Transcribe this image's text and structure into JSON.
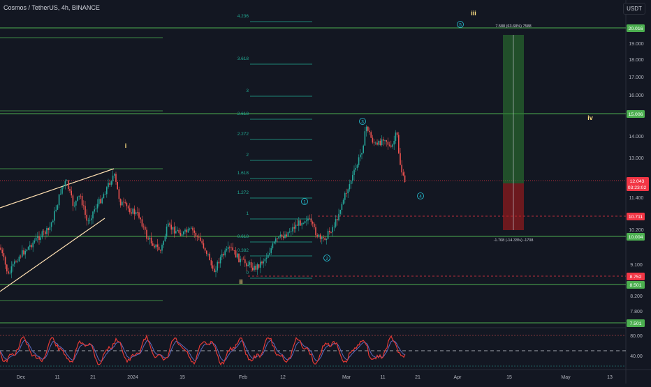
{
  "header": {
    "title": "Cosmos / TetherUS, 4h, BINANCE",
    "currency": "USDT"
  },
  "price_axis": {
    "ticks": [
      "19.000",
      "18.000",
      "17.000",
      "16.000",
      "14.000",
      "13.000",
      "11.400",
      "10.200",
      "9.100",
      "8.200",
      "7.800",
      "80.00",
      "40.00"
    ],
    "labels": [
      {
        "text": "20.016",
        "color": "#4caf50"
      },
      {
        "text": "15.006",
        "color": "#4caf50"
      },
      {
        "text": "12.043",
        "color": "#f23645"
      },
      {
        "text": "03:23:02",
        "color": "#f23645"
      },
      {
        "text": "10.711",
        "color": "#f23645"
      },
      {
        "text": "10.004",
        "color": "#4caf50"
      },
      {
        "text": "8.752",
        "color": "#f23645"
      },
      {
        "text": "8.501",
        "color": "#4caf50"
      },
      {
        "text": "7.501",
        "color": "#4caf50"
      }
    ]
  },
  "time_axis": [
    "Dec",
    "11",
    "21",
    "2024",
    "15",
    "Feb",
    "12",
    "Mar",
    "11",
    "21",
    "Apr",
    "15",
    "May",
    "13"
  ],
  "fib_levels": [
    "4.236",
    "3.618",
    "3",
    "2.618",
    "2.272",
    "2",
    "1.618",
    "1.272",
    "1",
    "0.618",
    "0.382",
    "0"
  ],
  "waves": {
    "roman": [
      "iii",
      "i",
      "iv",
      "ii"
    ],
    "circled": [
      "5",
      "3",
      "1",
      "4",
      "2"
    ]
  },
  "position": {
    "target_text": "7.588 (63.68%) 7588",
    "stop_text": "-1.708 (-14.33%) -1708"
  },
  "colors": {
    "background": "#131722",
    "fib": "#22ab94",
    "horizontal": "#4caf50",
    "up": "#26a69a",
    "down": "#ef5350",
    "wedge": "#ffe0b2",
    "rsi": "#e53935",
    "rsi_signal": "#5c6bc0"
  }
}
